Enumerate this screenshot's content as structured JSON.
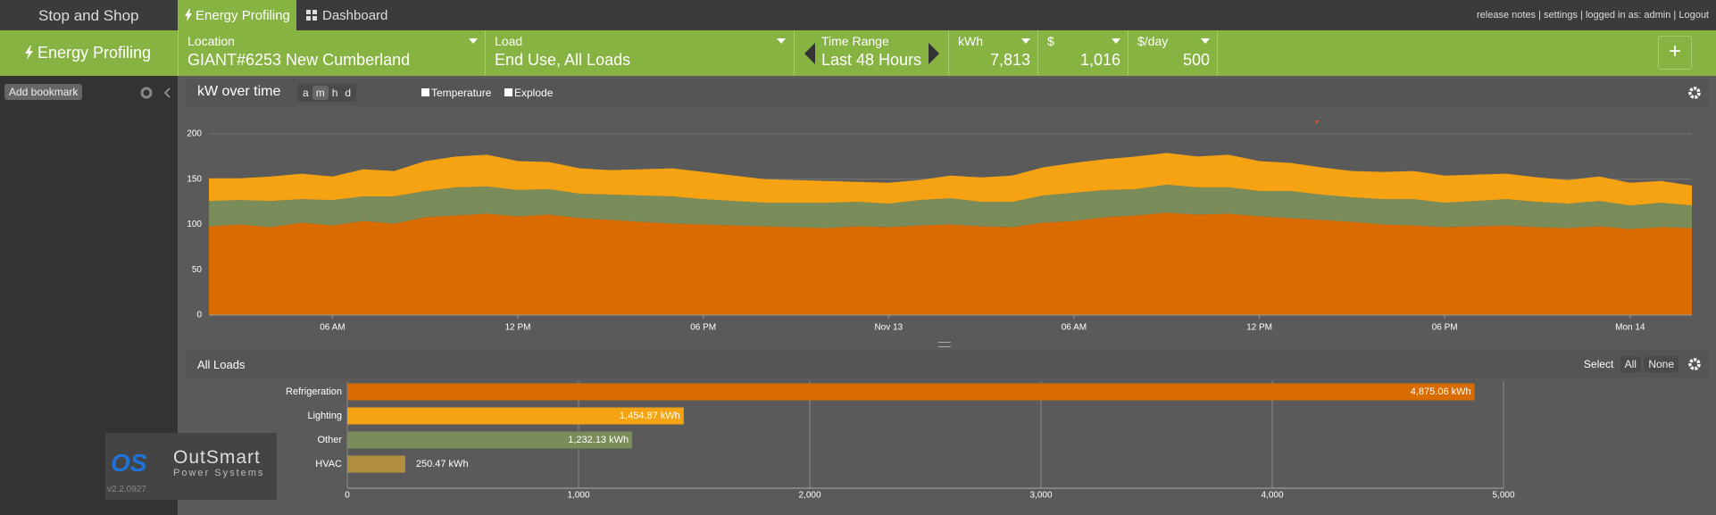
{
  "nav": {
    "brand": "Stop and Shop",
    "tabs": [
      "Energy Profiling",
      "Dashboard"
    ],
    "links": [
      "release notes",
      "settings",
      "logged in as: admin",
      "Logout"
    ]
  },
  "toolbar": {
    "title": "Energy Profiling",
    "fields": [
      {
        "label": "Location",
        "value": "GIANT#6253 New Cumberland"
      },
      {
        "label": "Load",
        "value": "End Use, All Loads"
      },
      {
        "label": "Time Range",
        "value": "Last 48 Hours"
      },
      {
        "label": "kWh",
        "value": "7,813"
      },
      {
        "label": "$",
        "value": "1,016"
      },
      {
        "label": "$/day",
        "value": "500"
      }
    ],
    "add": "+"
  },
  "sidebar": {
    "button": "Add bookmark",
    "logo_mark": "OS",
    "logo": "OutSmart",
    "logo_sub": "Power Systems",
    "version": "v2.2.0927"
  },
  "panel1": {
    "title": "kW over time",
    "scale_buttons": [
      "a",
      "m",
      "h",
      "d"
    ],
    "options": [
      "Temperature",
      "Explode"
    ]
  },
  "panel2": {
    "title": "All Loads",
    "select": "Select",
    "buttons": [
      "All",
      "None"
    ]
  },
  "chart_data": [
    {
      "type": "area",
      "stacked": true,
      "categories": [
        null,
        null,
        null,
        null,
        "06 AM",
        null,
        null,
        null,
        null,
        null,
        "12 PM",
        null,
        null,
        null,
        null,
        null,
        "06 PM",
        null,
        null,
        null,
        null,
        null,
        "Nov 13",
        null,
        null,
        null,
        null,
        null,
        "06 AM",
        null,
        null,
        null,
        null,
        null,
        "12 PM",
        null,
        null,
        null,
        null,
        null,
        "06 PM",
        null,
        null,
        null,
        null,
        null,
        "Mon 14",
        null,
        null
      ],
      "series": [
        {
          "name": "Refrigeration",
          "color": "#d96b00",
          "values": [
            98,
            100,
            97,
            102,
            99,
            104,
            101,
            108,
            110,
            112,
            109,
            111,
            107,
            105,
            103,
            101,
            100,
            99,
            98,
            97,
            96,
            98,
            97,
            99,
            100,
            98,
            97,
            102,
            104,
            108,
            110,
            113,
            111,
            112,
            109,
            107,
            105,
            103,
            100,
            99,
            97,
            98,
            99,
            97,
            96,
            98,
            95,
            97,
            96
          ]
        },
        {
          "name": "Other",
          "color": "#7a8c5a",
          "values": [
            28,
            27,
            29,
            26,
            28,
            27,
            30,
            29,
            31,
            30,
            29,
            28,
            27,
            28,
            29,
            30,
            28,
            27,
            26,
            27,
            28,
            27,
            26,
            28,
            29,
            27,
            28,
            30,
            31,
            30,
            29,
            31,
            30,
            29,
            28,
            30,
            28,
            27,
            28,
            29,
            27,
            28,
            29,
            28,
            27,
            28,
            26,
            27,
            25
          ]
        },
        {
          "name": "Lighting",
          "color": "#f5a312",
          "values": [
            25,
            24,
            27,
            28,
            26,
            30,
            28,
            33,
            34,
            35,
            32,
            30,
            28,
            27,
            29,
            31,
            30,
            28,
            26,
            25,
            24,
            22,
            23,
            22,
            25,
            27,
            29,
            31,
            33,
            34,
            36,
            35,
            34,
            36,
            33,
            31,
            30,
            29,
            30,
            31,
            30,
            29,
            28,
            27,
            26,
            27,
            25,
            24,
            22
          ]
        }
      ],
      "ylim": [
        0,
        200
      ],
      "yticks": [
        0,
        50,
        100,
        150,
        200
      ],
      "grid": true
    },
    {
      "type": "bar",
      "orientation": "horizontal",
      "categories": [
        "Refrigeration",
        "Lighting",
        "Other",
        "HVAC"
      ],
      "values": [
        4875.06,
        1454.87,
        1232.13,
        250.47
      ],
      "value_labels": [
        "4,875.06 kWh",
        "1,454.87 kWh",
        "1,232.13 kWh",
        "250.47 kWh"
      ],
      "colors": [
        "#d96b00",
        "#f5a312",
        "#7a8c5a",
        "#b09040"
      ],
      "xlim": [
        0,
        5000
      ],
      "xticks": [
        0,
        {
          "value": 1000,
          "label": "1,000"
        },
        {
          "value": 2000,
          "label": "2,000"
        },
        {
          "value": 3000,
          "label": "3,000"
        },
        {
          "value": 4000,
          "label": "4,000"
        },
        {
          "value": 5000,
          "label": "5,000"
        }
      ],
      "grid": true
    }
  ]
}
